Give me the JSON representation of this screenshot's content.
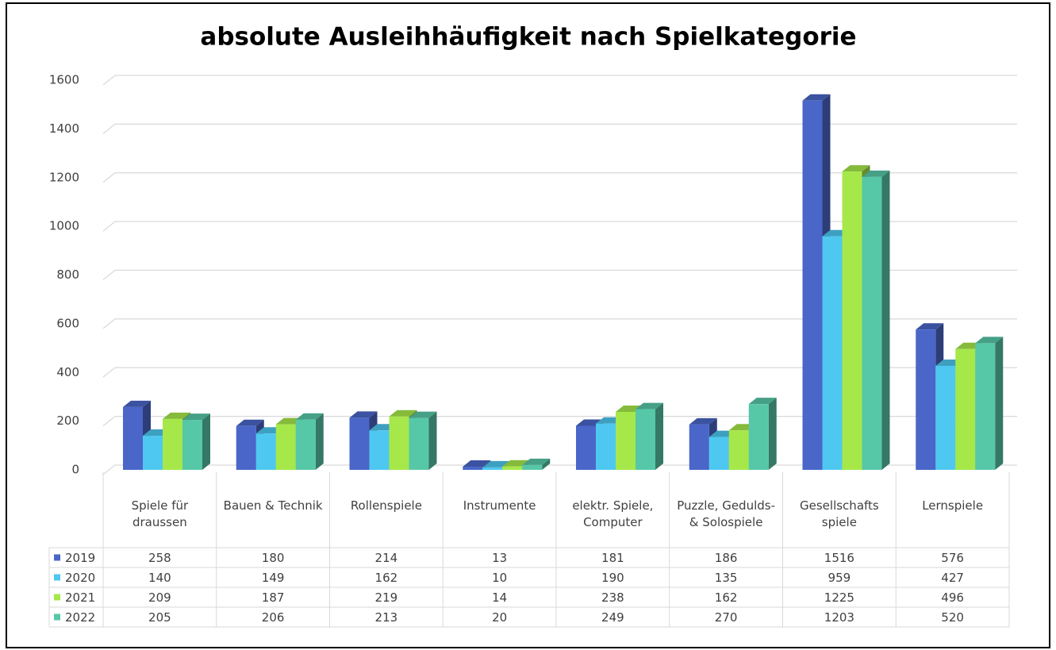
{
  "chart_data": {
    "type": "bar",
    "title": "absolute Ausleihhäufigkeit nach Spielkategorie",
    "categories": [
      "Spiele für draussen",
      "Bauen & Technik",
      "Rollenspiele",
      "Instrumente",
      "elektr. Spiele, Computer",
      "Puzzle, Gedulds- & Solospiele",
      "Gesellschafts spiele",
      "Lernspiele"
    ],
    "series": [
      {
        "name": "2019",
        "color": "#4a66c8",
        "values": [
          258,
          180,
          214,
          13,
          181,
          186,
          1516,
          576
        ]
      },
      {
        "name": "2020",
        "color": "#4ec8f0",
        "values": [
          140,
          149,
          162,
          10,
          190,
          135,
          959,
          427
        ]
      },
      {
        "name": "2021",
        "color": "#a6e84a",
        "values": [
          209,
          187,
          219,
          14,
          238,
          162,
          1225,
          496
        ]
      },
      {
        "name": "2022",
        "color": "#56c8a8",
        "values": [
          205,
          206,
          213,
          20,
          249,
          270,
          1203,
          520
        ]
      }
    ],
    "ylim": [
      0,
      1600
    ],
    "yticks": [
      0,
      200,
      400,
      600,
      800,
      1000,
      1200,
      1400,
      1600
    ],
    "grid": true
  }
}
